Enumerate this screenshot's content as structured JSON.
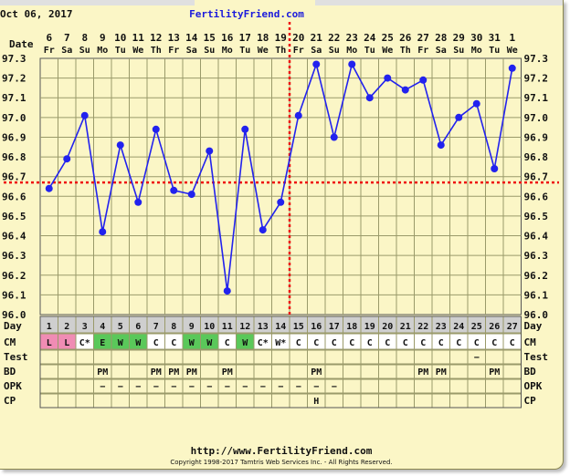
{
  "header": {
    "date": "Oct 06, 2017",
    "site": "FertilityFriend.com"
  },
  "footer": {
    "url": "http://www.FertilityFriend.com",
    "copyright": "Copyright 1998-2017 Tamtris Web Services Inc. - All Rights Reserved."
  },
  "row_labels": {
    "date": "Date",
    "day": "Day",
    "cm": "CM",
    "test": "Test",
    "bd": "BD",
    "opk": "OPK",
    "cp": "CP"
  },
  "colors": {
    "line": "#2222ee",
    "coverline": "#ee1111",
    "cm_L": "#f08cb4",
    "cm_E": "#5ac85a",
    "cm_W": "#5ac85a",
    "header_row": "#cfcfcf",
    "grid": "#9a9a6a"
  },
  "chart_data": {
    "type": "line",
    "ylim": [
      96.0,
      97.3
    ],
    "yticks": [
      "97.3",
      "97.2",
      "97.1",
      "97.0",
      "96.9",
      "96.8",
      "96.7",
      "96.6",
      "96.5",
      "96.4",
      "96.3",
      "96.2",
      "96.1",
      "96.0"
    ],
    "dates": [
      "6",
      "7",
      "8",
      "9",
      "10",
      "11",
      "12",
      "13",
      "14",
      "15",
      "16",
      "17",
      "18",
      "19",
      "20",
      "21",
      "22",
      "23",
      "24",
      "25",
      "26",
      "27",
      "28",
      "29",
      "30",
      "31",
      "1"
    ],
    "weekdays": [
      "Fr",
      "Sa",
      "Su",
      "Mo",
      "Tu",
      "We",
      "Th",
      "Fr",
      "Sa",
      "Su",
      "Mo",
      "Tu",
      "We",
      "Th",
      "Fr",
      "Sa",
      "Su",
      "Mo",
      "Tu",
      "We",
      "Th",
      "Fr",
      "Sa",
      "Su",
      "Mo",
      "Tu",
      "We"
    ],
    "days": [
      "1",
      "2",
      "3",
      "4",
      "5",
      "6",
      "7",
      "8",
      "9",
      "10",
      "11",
      "12",
      "13",
      "14",
      "15",
      "16",
      "17",
      "18",
      "19",
      "20",
      "21",
      "22",
      "23",
      "24",
      "25",
      "26",
      "27"
    ],
    "temps": [
      96.64,
      96.79,
      97.01,
      96.42,
      96.86,
      96.57,
      96.94,
      96.63,
      96.61,
      96.83,
      96.12,
      96.94,
      96.43,
      96.57,
      97.01,
      97.27,
      96.9,
      97.27,
      97.1,
      97.2,
      97.14,
      97.19,
      96.86,
      97.0,
      97.07,
      96.74,
      97.25
    ],
    "coverline": 96.67,
    "ovulation_day": 14,
    "cm": [
      "L",
      "L",
      "C*",
      "E",
      "W",
      "W",
      "C",
      "C",
      "W",
      "W",
      "C",
      "W",
      "C*",
      "W*",
      "C",
      "C",
      "C",
      "C",
      "C",
      "C",
      "C",
      "C",
      "C",
      "C",
      "C",
      "C",
      "C"
    ],
    "test": [
      "",
      "",
      "",
      "",
      "",
      "",
      "",
      "",
      "",
      "",
      "",
      "",
      "",
      "",
      "",
      "",
      "",
      "",
      "",
      "",
      "",
      "",
      "",
      "",
      "−",
      "",
      ""
    ],
    "bd": [
      "",
      "",
      "",
      "PM",
      "",
      "",
      "PM",
      "PM",
      "PM",
      "",
      "PM",
      "",
      "",
      "",
      "",
      "PM",
      "",
      "",
      "",
      "",
      "",
      "PM",
      "PM",
      "",
      "",
      "PM",
      ""
    ],
    "opk": [
      "",
      "",
      "",
      "−",
      "−",
      "−",
      "−",
      "−",
      "−",
      "−",
      "−",
      "−",
      "−",
      "−",
      "−",
      "−",
      "−",
      "",
      "",
      "",
      "",
      "",
      "",
      "",
      "",
      "",
      ""
    ],
    "cp": [
      "",
      "",
      "",
      "",
      "",
      "",
      "",
      "",
      "",
      "",
      "",
      "",
      "",
      "",
      "",
      "H",
      "",
      "",
      "",
      "",
      "",
      "",
      "",
      "",
      "",
      "",
      ""
    ]
  }
}
